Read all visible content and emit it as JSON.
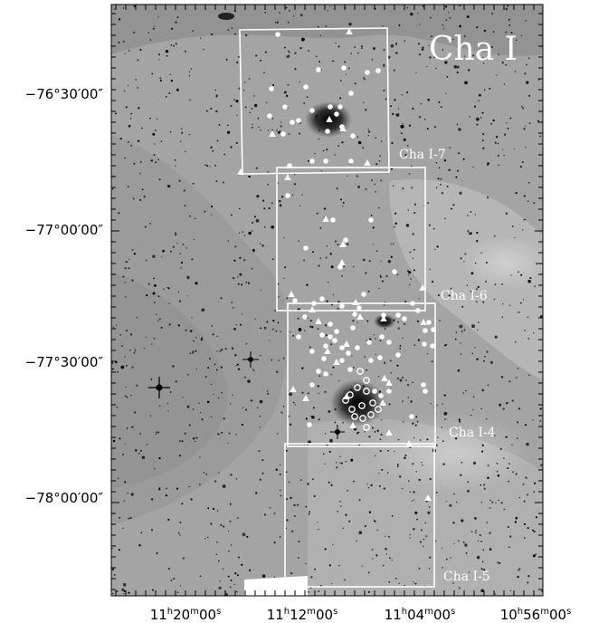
{
  "title": "Cha I",
  "colors": {
    "frame": "#000000",
    "overlay": "#ffffff",
    "sky_light": "#b4b4b4",
    "sky_dark": "#8a8a8a"
  },
  "dec_labels": [
    {
      "text": "−76°30′00″",
      "dec": -76.5
    },
    {
      "text": "−77°00′00″",
      "dec": -77.0
    },
    {
      "text": "−77°30′00″",
      "dec": -77.5
    },
    {
      "text": "−78°00′00″",
      "dec": -78.0
    }
  ],
  "ra_labels": [
    {
      "h": "11",
      "m": "20",
      "s": "00",
      "text": "11h20m00s"
    },
    {
      "h": "11",
      "m": "12",
      "s": "00",
      "text": "11h12m00s"
    },
    {
      "h": "11",
      "m": "04",
      "s": "00",
      "text": "11h04m00s"
    },
    {
      "h": "10",
      "m": "56",
      "s": "00",
      "text": "10h56m00s"
    }
  ],
  "fields": [
    {
      "name": "Cha I-7"
    },
    {
      "name": "Cha I-6"
    },
    {
      "name": "Cha I-4"
    },
    {
      "name": "Cha I-5"
    }
  ]
}
